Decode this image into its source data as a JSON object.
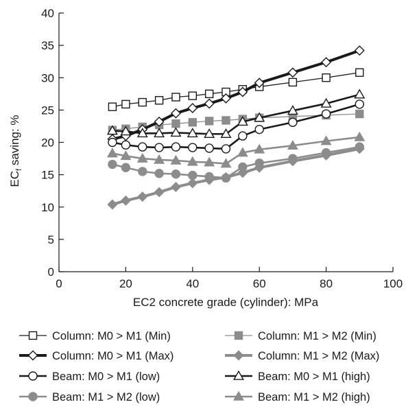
{
  "chart_data": {
    "type": "line",
    "title": "",
    "xlabel": "EC2 concrete grade (cylinder): MPa",
    "ylabel_main": "EC",
    "ylabel_sub": "f",
    "ylabel_rest": " saving: %",
    "xlim": [
      0,
      100
    ],
    "ylim": [
      0,
      40
    ],
    "xticks": [
      0,
      20,
      40,
      60,
      80,
      100
    ],
    "yticks": [
      0,
      5,
      10,
      15,
      20,
      25,
      30,
      35,
      40
    ],
    "grid": false,
    "legend_position": "bottom",
    "x": [
      16,
      20,
      25,
      30,
      35,
      40,
      45,
      50,
      55,
      60,
      70,
      80,
      90
    ],
    "series": [
      {
        "name": "Column: M0 > M1 (Min)",
        "color": "#1a1a1a",
        "marker": "square-open",
        "width": 1.3,
        "values": [
          25.5,
          25.9,
          26.2,
          26.5,
          27.0,
          27.2,
          27.5,
          27.8,
          28.2,
          28.6,
          29.3,
          30.0,
          30.8
        ]
      },
      {
        "name": "Column: M1 > M2 (Min)",
        "color": "#8c8c8c",
        "marker": "square-filled",
        "width": 1.3,
        "values": [
          21.9,
          22.1,
          22.4,
          22.7,
          22.9,
          23.1,
          23.3,
          23.4,
          23.6,
          23.8,
          24.0,
          24.2,
          24.4
        ]
      },
      {
        "name": "Column: M0 > M1 (Max)",
        "color": "#1a1a1a",
        "marker": "diamond-open",
        "width": 4,
        "values": [
          20.5,
          21.0,
          22.0,
          23.2,
          24.5,
          25.3,
          26.0,
          26.8,
          27.8,
          29.2,
          30.8,
          32.4,
          34.2
        ]
      },
      {
        "name": "Column: M1 > M2 (Max)",
        "color": "#8c8c8c",
        "marker": "diamond-filled",
        "width": 4,
        "values": [
          10.4,
          11.0,
          11.6,
          12.3,
          13.1,
          13.7,
          14.2,
          14.6,
          15.3,
          16.1,
          17.1,
          18.0,
          19.0
        ]
      },
      {
        "name": "Beam: M0 > M1 (low)",
        "color": "#1a1a1a",
        "marker": "circle-open",
        "width": 2.6,
        "values": [
          20.0,
          19.6,
          19.3,
          19.2,
          19.3,
          19.2,
          19.1,
          19.0,
          21.0,
          22.0,
          23.1,
          24.4,
          25.9
        ]
      },
      {
        "name": "Beam: M0 > M1 (high)",
        "color": "#1a1a1a",
        "marker": "triangle-open",
        "width": 2.6,
        "values": [
          21.8,
          21.7,
          21.4,
          21.4,
          21.5,
          21.4,
          21.3,
          21.3,
          23.2,
          23.8,
          24.9,
          26.0,
          27.4
        ]
      },
      {
        "name": "Beam: M1 > M2 (low)",
        "color": "#8c8c8c",
        "marker": "circle-filled",
        "width": 2.6,
        "values": [
          16.6,
          16.1,
          15.5,
          15.2,
          15.1,
          14.9,
          14.7,
          14.5,
          16.2,
          16.8,
          17.5,
          18.4,
          19.3
        ]
      },
      {
        "name": "Beam: M1 > M2 (high)",
        "color": "#8c8c8c",
        "marker": "triangle-filled",
        "width": 2.6,
        "values": [
          18.3,
          17.9,
          17.5,
          17.3,
          17.2,
          17.0,
          16.9,
          16.7,
          18.4,
          18.9,
          19.5,
          20.2,
          20.8
        ]
      }
    ],
    "legend_order": [
      0,
      1,
      2,
      3,
      4,
      5,
      6,
      7
    ]
  }
}
